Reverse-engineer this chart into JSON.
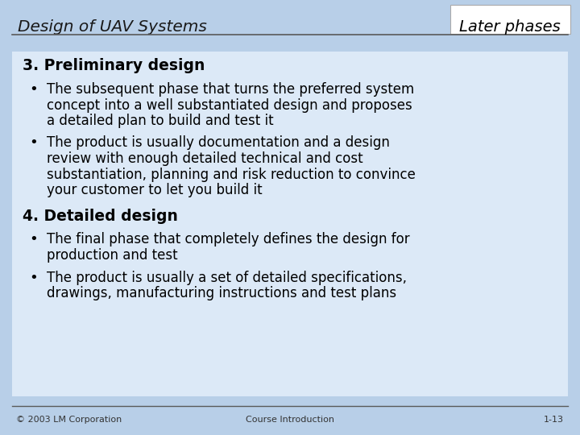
{
  "title_left": "Design of UAV Systems",
  "title_right": "Later phases",
  "slide_bg": "#b8cfe8",
  "content_bg": "#dce9f7",
  "header_line_color": "#5a5a5a",
  "footer_line_color": "#5a5a5a",
  "section1_heading": "3. Preliminary design",
  "bullet1_line1": "The subsequent phase that turns the preferred system",
  "bullet1_line2": "concept into a well substantiated design and proposes",
  "bullet1_line3": "a detailed plan to build and test it",
  "bullet2_line1": "The product is usually documentation and a design",
  "bullet2_line2": "review with enough detailed technical and cost",
  "bullet2_line3": "substantiation, planning and risk reduction to convince",
  "bullet2_line4": "your customer to let you build it",
  "section2_heading": "4. Detailed design",
  "bullet3_line1": "The final phase that completely defines the design for",
  "bullet3_line2": "production and test",
  "bullet4_line1": "The product is usually a set of detailed specifications,",
  "bullet4_line2": "drawings, manufacturing instructions and test plans",
  "footer_left": "© 2003 LM Corporation",
  "footer_center": "Course Introduction",
  "footer_right": "1-13",
  "text_color": "#000000",
  "heading_color": "#000000",
  "title_color": "#1a1a1a",
  "footer_color": "#333333"
}
